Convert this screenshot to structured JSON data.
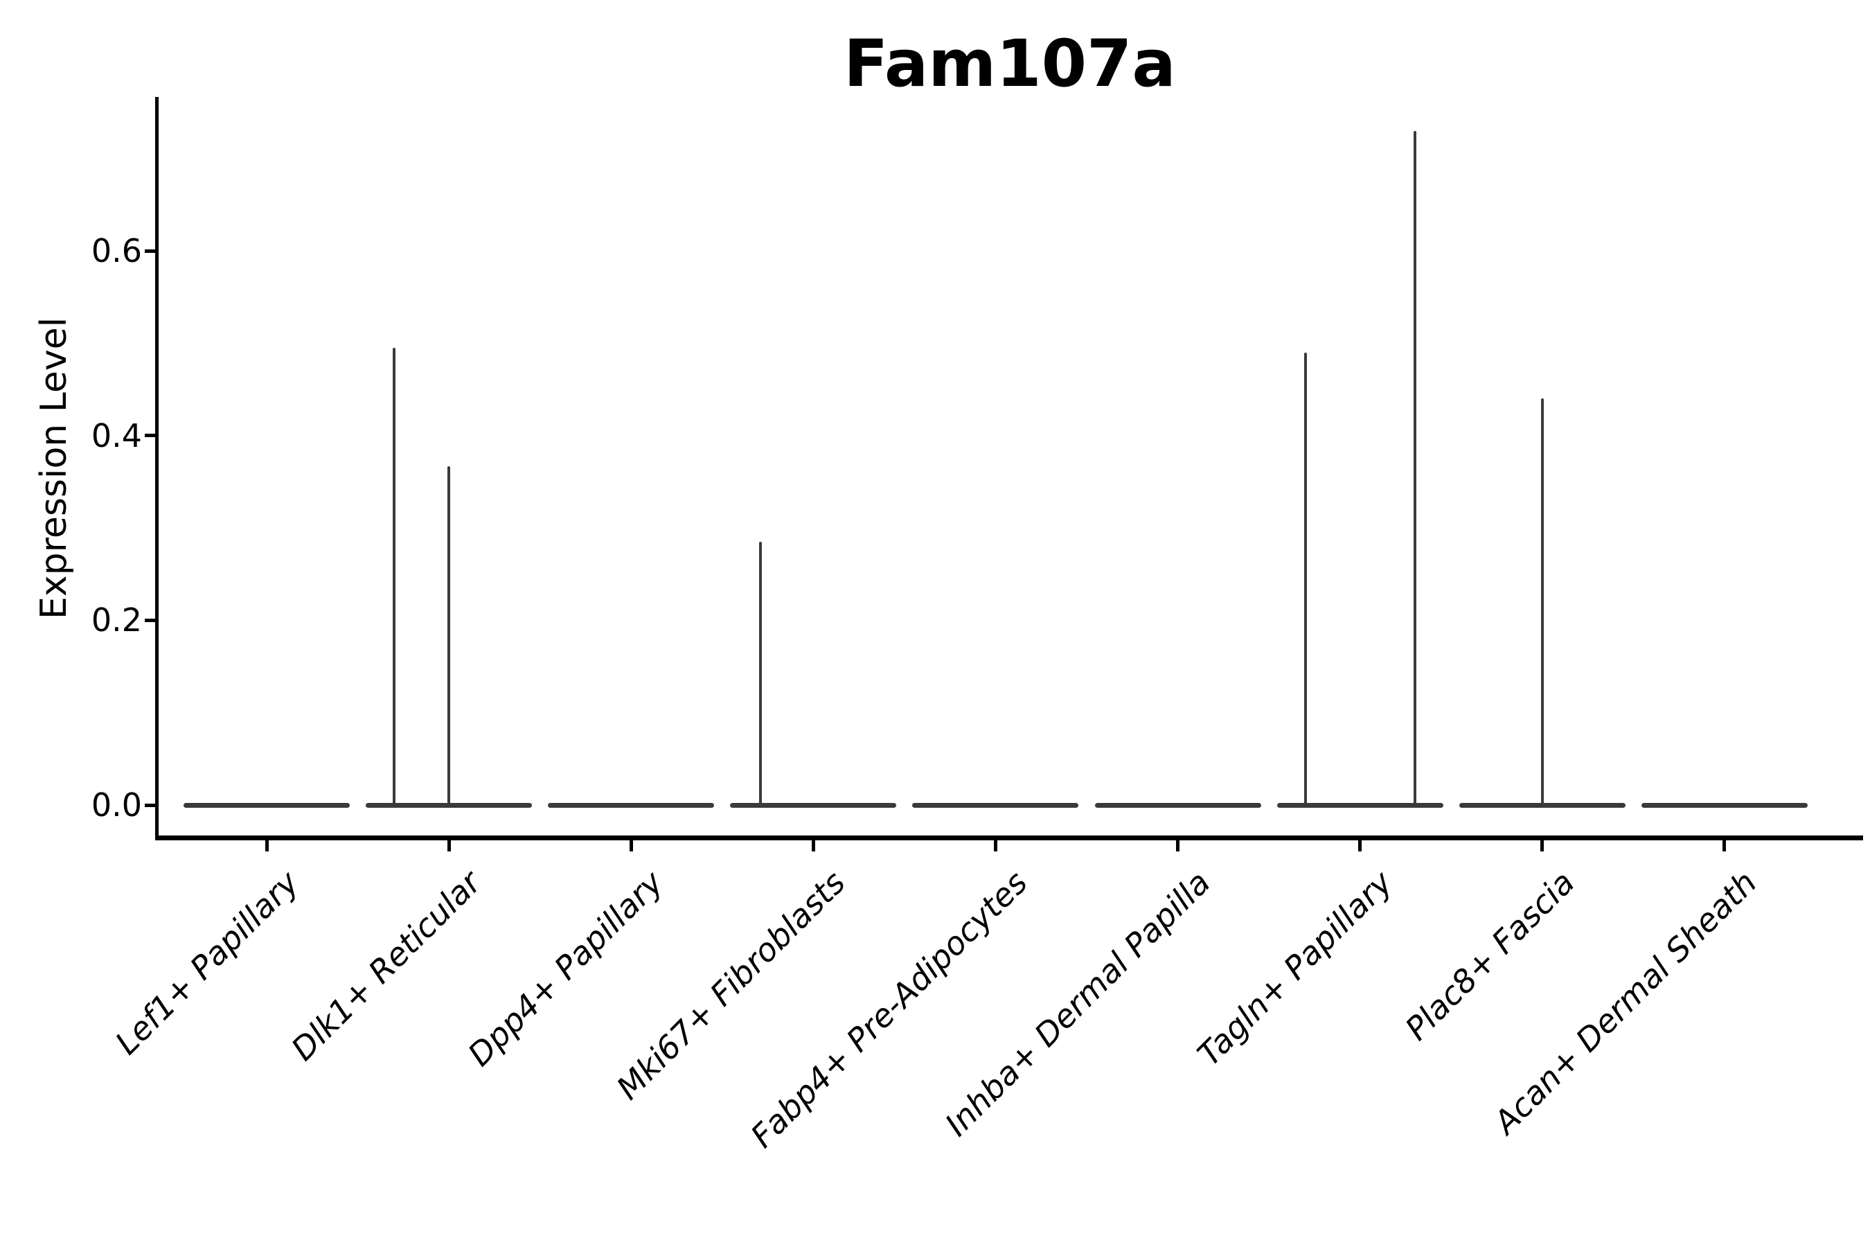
{
  "title": "Fam107a",
  "colors": {
    "background": "#ffffff",
    "axis": "#000000",
    "text": "#000000",
    "violin": "#3a3a3a"
  },
  "chart_data": {
    "type": "violin",
    "title": "Fam107a",
    "xlabel": "",
    "ylabel": "Expression Level",
    "ylim": [
      0,
      0.76
    ],
    "grid": false,
    "legend": "none",
    "yticks": [
      {
        "value": 0.0,
        "label": "0.0"
      },
      {
        "value": 0.2,
        "label": "0.2"
      },
      {
        "value": 0.4,
        "label": "0.4"
      },
      {
        "value": 0.6,
        "label": "0.6"
      }
    ],
    "violin_width": 0.91,
    "categories": [
      "Lef1+ Papillary",
      "Dlk1+ Reticular",
      "Dpp4+ Papillary",
      "Mki67+ Fibroblasts",
      "Fabp4+ Pre-Adipocytes",
      "Inhba+ Dermal Papilla",
      "Tagln+ Papillary",
      "Plac8+ Fascia",
      "Acan+ Dermal Sheath"
    ],
    "series": [
      {
        "name": "Lef1+ Papillary",
        "baseline": 0.0,
        "spikes": []
      },
      {
        "name": "Dlk1+ Reticular",
        "baseline": 0.0,
        "spikes": [
          {
            "dx": -0.3,
            "value": 0.495
          },
          {
            "dx": 0.0,
            "value": 0.367
          }
        ]
      },
      {
        "name": "Dpp4+ Papillary",
        "baseline": 0.0,
        "spikes": []
      },
      {
        "name": "Mki67+ Fibroblasts",
        "baseline": 0.0,
        "spikes": [
          {
            "dx": -0.29,
            "value": 0.285
          }
        ]
      },
      {
        "name": "Fabp4+ Pre-Adipocytes",
        "baseline": 0.0,
        "spikes": []
      },
      {
        "name": "Inhba+ Dermal Papilla",
        "baseline": 0.0,
        "spikes": []
      },
      {
        "name": "Tagln+ Papillary",
        "baseline": 0.0,
        "spikes": [
          {
            "dx": -0.3,
            "value": 0.49
          },
          {
            "dx": 0.3,
            "value": 0.73
          }
        ]
      },
      {
        "name": "Plac8+ Fascia",
        "baseline": 0.0,
        "spikes": [
          {
            "dx": 0.0,
            "value": 0.44
          }
        ]
      },
      {
        "name": "Acan+ Dermal Sheath",
        "baseline": 0.0,
        "spikes": []
      }
    ]
  }
}
